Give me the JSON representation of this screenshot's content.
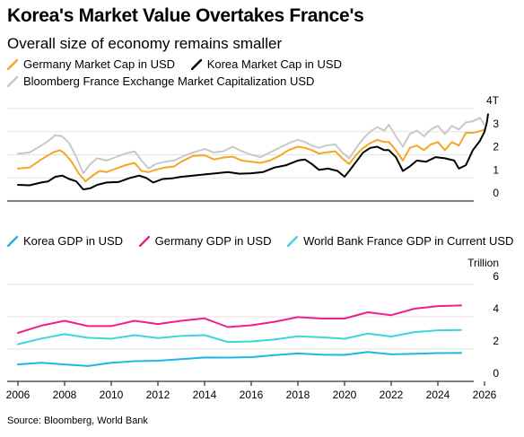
{
  "title": "Korea's Market Value Overtakes France's",
  "subtitle": "Overall size of economy remains smaller",
  "source": "Source: Bloomberg, World Bank",
  "chart_data": [
    {
      "type": "line",
      "title": "Korea's Market Value Overtakes France's",
      "subtitle": "Overall size of economy remains smaller",
      "unit_label": "T",
      "ylim": [
        0,
        4
      ],
      "yticks": [
        0,
        1,
        2,
        3,
        4
      ],
      "ytick_labels": [
        "0",
        "1",
        "2",
        "3",
        "4T"
      ],
      "grid": true,
      "legend_position": "top",
      "series": [
        {
          "name": "Germany Market Cap in USD",
          "color": "#f5a623",
          "x": [
            2006.0,
            2006.5,
            2007.0,
            2007.5,
            2007.8,
            2008.0,
            2008.3,
            2008.6,
            2008.9,
            2009.2,
            2009.5,
            2009.8,
            2010.2,
            2010.6,
            2011.0,
            2011.3,
            2011.6,
            2011.9,
            2012.3,
            2012.7,
            2013.0,
            2013.5,
            2014.0,
            2014.4,
            2014.8,
            2015.2,
            2015.6,
            2016.0,
            2016.4,
            2016.8,
            2017.2,
            2017.6,
            2018.0,
            2018.3,
            2018.6,
            2018.9,
            2019.2,
            2019.6,
            2019.9,
            2020.2,
            2020.5,
            2020.8,
            2021.1,
            2021.4,
            2021.7,
            2021.9,
            2022.2,
            2022.5,
            2022.8,
            2023.1,
            2023.4,
            2023.7,
            2024.0,
            2024.3,
            2024.6,
            2024.9,
            2025.2,
            2025.5,
            2025.7,
            2025.9,
            2026.0
          ],
          "y": [
            1.4,
            1.45,
            1.8,
            2.1,
            2.2,
            2.05,
            1.7,
            1.2,
            0.85,
            1.1,
            1.3,
            1.25,
            1.4,
            1.55,
            1.65,
            1.3,
            1.25,
            1.35,
            1.45,
            1.5,
            1.7,
            1.95,
            1.98,
            1.8,
            1.88,
            1.92,
            1.75,
            1.7,
            1.65,
            1.75,
            1.95,
            2.2,
            2.35,
            2.3,
            2.2,
            2.05,
            2.1,
            2.15,
            1.85,
            1.6,
            2.0,
            2.3,
            2.5,
            2.65,
            2.55,
            2.55,
            2.2,
            1.75,
            2.3,
            2.4,
            2.2,
            2.45,
            2.55,
            2.2,
            2.55,
            2.4,
            2.95,
            2.95,
            3.0,
            3.05,
            3.1
          ]
        },
        {
          "name": "Korea Market Cap in USD",
          "color": "#000000",
          "x": [
            2006.0,
            2006.5,
            2007.0,
            2007.3,
            2007.6,
            2007.9,
            2008.2,
            2008.5,
            2008.8,
            2009.1,
            2009.4,
            2009.8,
            2010.3,
            2010.8,
            2011.2,
            2011.5,
            2011.8,
            2012.2,
            2012.6,
            2013.0,
            2013.5,
            2014.0,
            2014.5,
            2015.0,
            2015.5,
            2016.0,
            2016.5,
            2017.0,
            2017.5,
            2018.0,
            2018.3,
            2018.6,
            2018.9,
            2019.3,
            2019.7,
            2020.0,
            2020.2,
            2020.5,
            2020.8,
            2021.1,
            2021.4,
            2021.7,
            2021.9,
            2022.2,
            2022.5,
            2022.8,
            2023.1,
            2023.5,
            2023.9,
            2024.3,
            2024.7,
            2024.9,
            2025.2,
            2025.5,
            2025.8,
            2026.0,
            2026.1,
            2026.15
          ],
          "y": [
            0.7,
            0.68,
            0.8,
            0.85,
            1.05,
            1.1,
            0.95,
            0.85,
            0.5,
            0.55,
            0.7,
            0.8,
            0.82,
            1.0,
            1.1,
            1.0,
            0.8,
            0.95,
            0.98,
            1.05,
            1.1,
            1.15,
            1.2,
            1.25,
            1.18,
            1.2,
            1.25,
            1.45,
            1.55,
            1.75,
            1.8,
            1.6,
            1.35,
            1.4,
            1.3,
            1.05,
            1.3,
            1.7,
            2.1,
            2.3,
            2.35,
            2.2,
            2.2,
            1.9,
            1.3,
            1.5,
            1.75,
            1.7,
            1.9,
            1.85,
            1.75,
            1.4,
            1.55,
            2.2,
            2.6,
            3.0,
            3.4,
            3.75
          ]
        },
        {
          "name": "Bloomberg France Exchange Market Capitalization USD",
          "color": "#c8c8c8",
          "x": [
            2006.0,
            2006.5,
            2007.0,
            2007.3,
            2007.6,
            2007.9,
            2008.2,
            2008.5,
            2008.8,
            2009.1,
            2009.4,
            2009.8,
            2010.2,
            2010.6,
            2011.0,
            2011.3,
            2011.6,
            2011.9,
            2012.3,
            2012.7,
            2013.0,
            2013.5,
            2014.0,
            2014.4,
            2014.8,
            2015.2,
            2015.6,
            2016.0,
            2016.4,
            2016.8,
            2017.2,
            2017.6,
            2018.0,
            2018.3,
            2018.6,
            2018.9,
            2019.2,
            2019.6,
            2019.9,
            2020.2,
            2020.5,
            2020.8,
            2021.1,
            2021.4,
            2021.7,
            2021.9,
            2022.2,
            2022.5,
            2022.8,
            2023.1,
            2023.4,
            2023.7,
            2024.0,
            2024.3,
            2024.6,
            2024.9,
            2025.2,
            2025.5,
            2025.8,
            2026.0
          ],
          "y": [
            2.05,
            2.1,
            2.4,
            2.6,
            2.85,
            2.8,
            2.5,
            1.9,
            1.2,
            1.6,
            1.85,
            1.75,
            1.9,
            2.05,
            2.15,
            1.75,
            1.4,
            1.6,
            1.7,
            1.75,
            1.9,
            2.1,
            2.25,
            2.1,
            2.15,
            2.35,
            2.15,
            2.0,
            1.9,
            2.1,
            2.3,
            2.5,
            2.65,
            2.55,
            2.4,
            2.3,
            2.4,
            2.45,
            2.1,
            1.85,
            2.3,
            2.7,
            3.0,
            3.2,
            3.05,
            3.3,
            2.8,
            2.35,
            2.9,
            3.05,
            2.8,
            3.1,
            3.25,
            2.9,
            3.25,
            3.1,
            3.4,
            3.45,
            3.6,
            3.3
          ]
        }
      ]
    },
    {
      "type": "line",
      "unit_label": "Trillion",
      "ylim": [
        0,
        6
      ],
      "yticks": [
        0,
        2,
        4,
        6
      ],
      "ytick_labels": [
        "0",
        "2",
        "4",
        "6"
      ],
      "xlim": [
        2006,
        2026
      ],
      "xticks": [
        2006,
        2008,
        2010,
        2012,
        2014,
        2016,
        2018,
        2020,
        2022,
        2024,
        2026
      ],
      "grid": true,
      "legend_position": "top",
      "series": [
        {
          "name": "Korea GDP in USD",
          "color": "#1fb5e6",
          "x": [
            2006,
            2007,
            2008,
            2009,
            2010,
            2011,
            2012,
            2013,
            2014,
            2015,
            2016,
            2017,
            2018,
            2019,
            2020,
            2021,
            2022,
            2023,
            2024,
            2025
          ],
          "y": [
            1.05,
            1.15,
            1.05,
            0.95,
            1.15,
            1.25,
            1.28,
            1.37,
            1.48,
            1.47,
            1.5,
            1.62,
            1.73,
            1.65,
            1.64,
            1.82,
            1.67,
            1.71,
            1.75,
            1.76
          ]
        },
        {
          "name": "Germany GDP in USD",
          "color": "#ee1f8f",
          "x": [
            2006,
            2007,
            2008,
            2009,
            2010,
            2011,
            2012,
            2013,
            2014,
            2015,
            2016,
            2017,
            2018,
            2019,
            2020,
            2021,
            2022,
            2023,
            2024,
            2025
          ],
          "y": [
            3.0,
            3.45,
            3.75,
            3.42,
            3.42,
            3.75,
            3.55,
            3.75,
            3.9,
            3.36,
            3.47,
            3.69,
            3.98,
            3.89,
            3.89,
            4.28,
            4.1,
            4.5,
            4.66,
            4.7
          ]
        },
        {
          "name": "World Bank France GDP in Current USD",
          "color": "#3fd4e0",
          "x": [
            2006,
            2007,
            2008,
            2009,
            2010,
            2011,
            2012,
            2013,
            2014,
            2015,
            2016,
            2017,
            2018,
            2019,
            2020,
            2021,
            2022,
            2023,
            2024,
            2025
          ],
          "y": [
            2.3,
            2.65,
            2.92,
            2.7,
            2.64,
            2.86,
            2.68,
            2.81,
            2.86,
            2.44,
            2.47,
            2.59,
            2.79,
            2.73,
            2.64,
            2.96,
            2.78,
            3.05,
            3.16,
            3.18
          ]
        }
      ]
    }
  ]
}
